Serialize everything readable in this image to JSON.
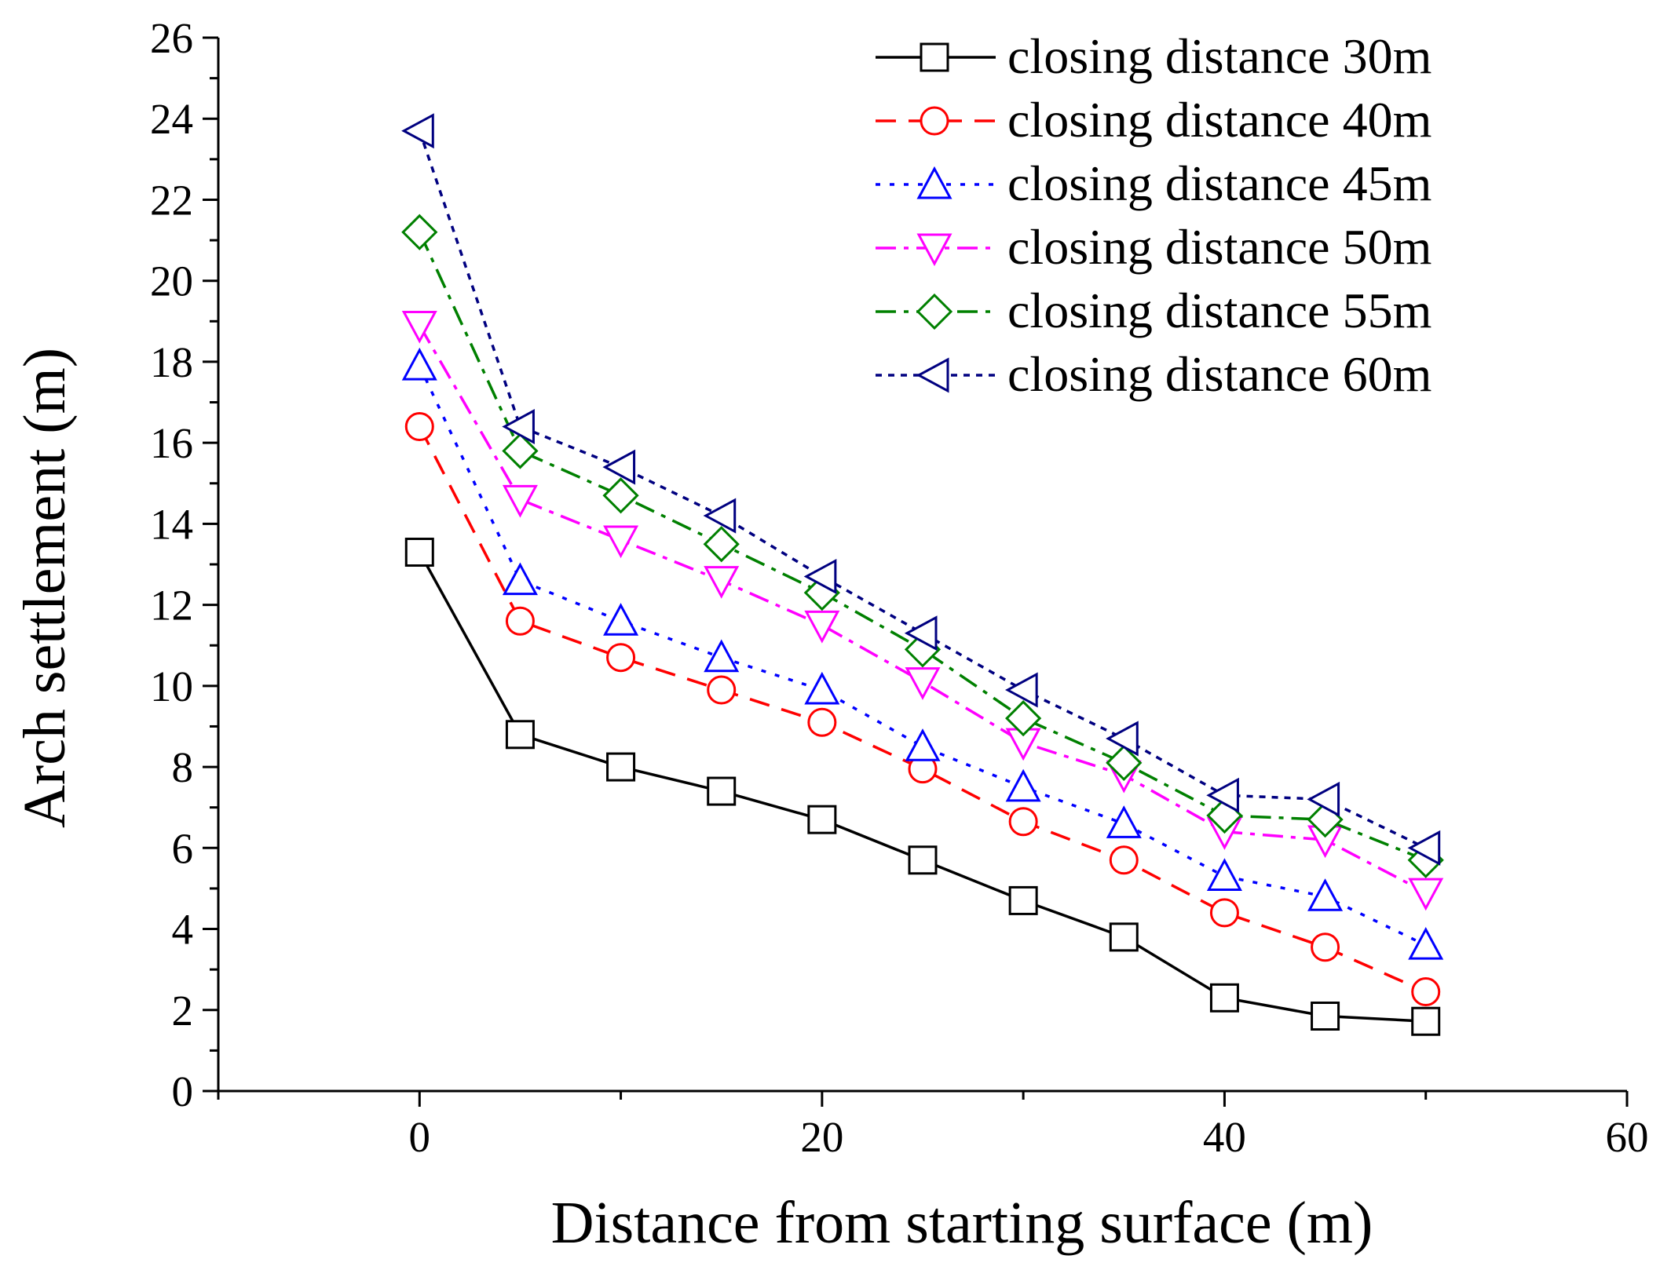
{
  "chart_data": {
    "type": "line",
    "xlabel": "Distance from starting surface (m)",
    "ylabel": "Arch settlement (m)",
    "xlim": [
      -10,
      60
    ],
    "ylim": [
      0,
      26
    ],
    "x_ticks": [
      0,
      20,
      40,
      60
    ],
    "x_tick_labels": [
      "0",
      "20",
      "40",
      "60"
    ],
    "y_ticks": [
      0,
      2,
      4,
      6,
      8,
      10,
      12,
      14,
      16,
      18,
      20,
      22,
      24,
      26
    ],
    "y_tick_labels": [
      "0",
      "2",
      "4",
      "6",
      "8",
      "10",
      "12",
      "14",
      "16",
      "18",
      "20",
      "22",
      "24",
      "26"
    ],
    "legend_position": "top-right",
    "grid": false,
    "x": [
      0,
      5,
      10,
      15,
      20,
      25,
      30,
      35,
      40,
      45,
      50
    ],
    "series": [
      {
        "name": "closing distance 30m",
        "color": "#000000",
        "marker": "square",
        "line_style": "solid",
        "values": [
          13.3,
          8.8,
          8.0,
          7.4,
          6.7,
          5.7,
          4.7,
          3.8,
          2.3,
          1.85,
          1.72
        ]
      },
      {
        "name": "closing distance 40m",
        "color": "#ff0000",
        "marker": "circle",
        "line_style": "dash",
        "values": [
          16.4,
          11.6,
          10.7,
          9.9,
          9.1,
          7.95,
          6.65,
          5.7,
          4.4,
          3.55,
          2.45
        ]
      },
      {
        "name": "closing distance 45m",
        "color": "#0000ff",
        "marker": "triangle-up",
        "line_style": "dot",
        "values": [
          17.9,
          12.6,
          11.6,
          10.7,
          9.9,
          8.5,
          7.5,
          6.6,
          5.3,
          4.8,
          3.6
        ]
      },
      {
        "name": "closing distance 50m",
        "color": "#ff00ff",
        "marker": "triangle-down",
        "line_style": "dashdot",
        "values": [
          18.9,
          14.6,
          13.6,
          12.6,
          11.5,
          10.1,
          8.6,
          7.8,
          6.4,
          6.2,
          4.9
        ]
      },
      {
        "name": "closing distance 55m",
        "color": "#008000",
        "marker": "diamond",
        "line_style": "dashdot",
        "values": [
          21.2,
          15.8,
          14.7,
          13.5,
          12.3,
          10.9,
          9.2,
          8.1,
          6.8,
          6.7,
          5.7
        ]
      },
      {
        "name": "closing distance 60m",
        "color": "#000080",
        "marker": "triangle-left",
        "line_style": "short-dot",
        "values": [
          23.7,
          16.4,
          15.4,
          14.2,
          12.7,
          11.3,
          9.9,
          8.7,
          7.3,
          7.2,
          6.0
        ]
      }
    ]
  }
}
